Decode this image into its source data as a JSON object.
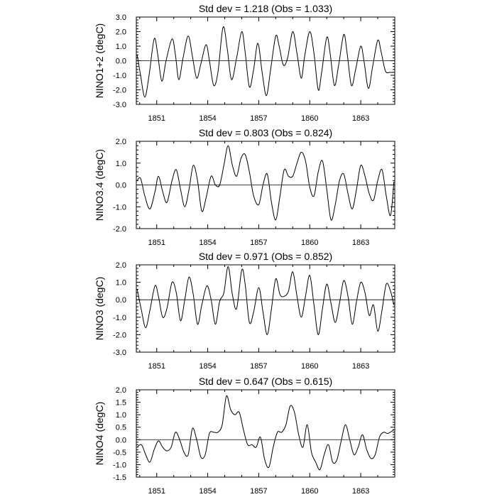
{
  "chart_data": [
    {
      "type": "line",
      "title": "Std dev = 1.218 (Obs = 1.033)",
      "ylabel": "NINO1+2 (degC)",
      "xlim": [
        1849.8,
        1865.0
      ],
      "ylim": [
        -3.0,
        3.0
      ],
      "x_ticks": [
        1851,
        1854,
        1857,
        1860,
        1863
      ],
      "y_ticks": [
        -3.0,
        -2.0,
        -1.0,
        0.0,
        1.0,
        2.0,
        3.0
      ],
      "y_tick_labels": [
        "-3.0",
        "-2.0",
        "-1.0",
        "0.0",
        "1.0",
        "2.0",
        "3.0"
      ],
      "x_tick_labels": [
        "1851",
        "1854",
        "1857",
        "1860",
        "1863"
      ],
      "series": [
        {
          "x": [
            1849.85,
            1850.05,
            1850.3,
            1850.55,
            1850.85,
            1851.05,
            1851.3,
            1851.55,
            1851.9,
            1852.1,
            1852.3,
            1852.55,
            1852.85,
            1853.1,
            1853.35,
            1853.6,
            1853.9,
            1854.1,
            1854.35,
            1854.6,
            1854.9,
            1855.15,
            1855.4,
            1855.7,
            1856.0,
            1856.2,
            1856.45,
            1856.7,
            1856.95,
            1857.2,
            1857.45,
            1857.7,
            1858.0,
            1858.2,
            1858.45,
            1858.7,
            1859.0,
            1859.25,
            1859.5,
            1859.7,
            1860.0,
            1860.25,
            1860.5,
            1860.7,
            1861.0,
            1861.2,
            1861.45,
            1861.7,
            1862.0,
            1862.2,
            1862.45,
            1862.7,
            1863.0,
            1863.2,
            1863.45,
            1863.7,
            1864.0,
            1864.2,
            1864.45,
            1864.7,
            1864.95
          ],
          "y": [
            0.4,
            -1.0,
            -2.5,
            -1.0,
            1.5,
            0.5,
            -1.4,
            0.0,
            1.5,
            0.4,
            -1.3,
            0.2,
            1.7,
            0.3,
            -1.2,
            -0.2,
            1.1,
            0.0,
            -1.7,
            -0.8,
            2.3,
            0.8,
            -1.3,
            0.2,
            2.0,
            0.6,
            -1.8,
            -0.6,
            1.2,
            -0.8,
            -2.4,
            -0.6,
            1.7,
            1.0,
            -0.3,
            0.2,
            2.0,
            0.5,
            -1.2,
            0.3,
            2.0,
            0.5,
            -2.0,
            -0.8,
            1.6,
            0.5,
            -1.7,
            -0.3,
            1.8,
            0.5,
            -1.7,
            -0.6,
            1.0,
            -0.1,
            -1.9,
            -0.4,
            1.4,
            0.6,
            -0.7,
            -0.8,
            -0.8
          ]
        }
      ]
    },
    {
      "type": "line",
      "title": "Std dev = 0.803 (Obs = 0.824)",
      "ylabel": "NINO3.4 (degC)",
      "xlim": [
        1849.8,
        1865.0
      ],
      "ylim": [
        -2.0,
        2.0
      ],
      "x_ticks": [
        1851,
        1854,
        1857,
        1860,
        1863
      ],
      "y_ticks": [
        -2.0,
        -1.0,
        0.0,
        1.0,
        2.0
      ],
      "y_tick_labels": [
        "-2.0",
        "-1.0",
        "0.0",
        "1.0",
        "2.0"
      ],
      "x_tick_labels": [
        "1851",
        "1854",
        "1857",
        "1860",
        "1863"
      ],
      "series": [
        {
          "x": [
            1849.85,
            1850.05,
            1850.3,
            1850.6,
            1850.9,
            1851.1,
            1851.35,
            1851.6,
            1851.9,
            1852.15,
            1852.4,
            1852.65,
            1852.9,
            1853.15,
            1853.4,
            1853.65,
            1853.9,
            1854.2,
            1854.45,
            1854.7,
            1854.95,
            1855.2,
            1855.45,
            1855.7,
            1855.95,
            1856.2,
            1856.45,
            1856.7,
            1857.0,
            1857.25,
            1857.5,
            1857.75,
            1858.0,
            1858.25,
            1858.5,
            1858.75,
            1859.0,
            1859.25,
            1859.5,
            1859.75,
            1860.0,
            1860.25,
            1860.5,
            1860.75,
            1861.0,
            1861.25,
            1861.5,
            1861.75,
            1862.0,
            1862.25,
            1862.5,
            1862.75,
            1863.0,
            1863.25,
            1863.5,
            1863.75,
            1864.0,
            1864.25,
            1864.5,
            1864.75,
            1864.95
          ],
          "y": [
            0.2,
            0.3,
            -0.5,
            -1.1,
            -0.3,
            0.4,
            -0.3,
            -0.8,
            0.2,
            0.7,
            -0.2,
            -1.0,
            -0.2,
            0.9,
            0.2,
            -1.2,
            -0.6,
            0.4,
            0.0,
            0.0,
            0.9,
            1.8,
            0.9,
            0.4,
            1.2,
            1.4,
            0.6,
            -0.5,
            -0.9,
            0.0,
            0.5,
            -0.8,
            -1.6,
            -0.5,
            0.7,
            0.4,
            0.4,
            1.0,
            1.5,
            1.1,
            -0.1,
            -0.5,
            0.6,
            1.1,
            -0.2,
            -1.6,
            -0.9,
            0.2,
            0.5,
            -0.4,
            -1.1,
            -0.2,
            0.9,
            0.4,
            -0.4,
            -0.7,
            0.2,
            0.7,
            -0.5,
            -1.4,
            0.15
          ]
        }
      ]
    },
    {
      "type": "line",
      "title": "Std dev = 0.971 (Obs = 0.852)",
      "ylabel": "NINO3 (degC)",
      "xlim": [
        1849.8,
        1865.0
      ],
      "ylim": [
        -3.0,
        2.0
      ],
      "x_ticks": [
        1851,
        1854,
        1857,
        1860,
        1863
      ],
      "y_ticks": [
        -3.0,
        -2.0,
        -1.0,
        0.0,
        1.0,
        2.0
      ],
      "y_tick_labels": [
        "-3.0",
        "-2.0",
        "-1.0",
        "0.0",
        "1.0",
        "2.0"
      ],
      "x_tick_labels": [
        "1851",
        "1854",
        "1857",
        "1860",
        "1863"
      ],
      "series": [
        {
          "x": [
            1849.85,
            1850.1,
            1850.35,
            1850.6,
            1850.9,
            1851.1,
            1851.35,
            1851.6,
            1851.9,
            1852.15,
            1852.4,
            1852.65,
            1852.9,
            1853.15,
            1853.4,
            1853.65,
            1853.95,
            1854.2,
            1854.45,
            1854.7,
            1854.95,
            1855.2,
            1855.45,
            1855.7,
            1856.0,
            1856.2,
            1856.45,
            1856.7,
            1857.0,
            1857.25,
            1857.5,
            1857.75,
            1858.0,
            1858.25,
            1858.5,
            1858.75,
            1859.0,
            1859.25,
            1859.5,
            1859.75,
            1860.0,
            1860.25,
            1860.5,
            1860.75,
            1861.0,
            1861.25,
            1861.5,
            1861.75,
            1862.0,
            1862.25,
            1862.5,
            1862.75,
            1863.0,
            1863.25,
            1863.5,
            1863.75,
            1864.0,
            1864.25,
            1864.5,
            1864.75,
            1864.95
          ],
          "y": [
            0.6,
            -0.6,
            -1.6,
            -0.6,
            0.8,
            0.2,
            -1.0,
            -0.5,
            1.0,
            0.4,
            -1.2,
            0.0,
            1.3,
            0.3,
            -1.4,
            -0.3,
            0.8,
            0.0,
            -1.4,
            -0.1,
            0.4,
            1.9,
            0.3,
            -0.5,
            1.7,
            0.9,
            -1.3,
            -0.7,
            0.7,
            -0.7,
            -2.0,
            -0.5,
            1.2,
            0.3,
            0.2,
            0.5,
            1.6,
            0.2,
            -1.0,
            0.2,
            1.4,
            -0.3,
            -2.0,
            -0.5,
            0.9,
            -0.2,
            -1.3,
            -0.2,
            1.1,
            0.2,
            -1.4,
            -0.1,
            1.0,
            0.4,
            -0.9,
            -0.3,
            -1.8,
            -0.6,
            0.9,
            0.5,
            -0.3
          ]
        }
      ]
    },
    {
      "type": "line",
      "title": "Std dev = 0.647 (Obs = 0.615)",
      "ylabel": "NINO4 (degC)",
      "xlim": [
        1849.8,
        1865.0
      ],
      "ylim": [
        -1.5,
        2.0
      ],
      "x_ticks": [
        1851,
        1854,
        1857,
        1860,
        1863
      ],
      "y_ticks": [
        -1.5,
        -1.0,
        -0.5,
        0.0,
        0.5,
        1.0,
        1.5,
        2.0
      ],
      "y_tick_labels": [
        "-1.5",
        "-1.0",
        "-0.5",
        "0.0",
        "0.5",
        "1.0",
        "1.5",
        "2.0"
      ],
      "x_tick_labels": [
        "1851",
        "1854",
        "1857",
        "1860",
        "1863"
      ],
      "series": [
        {
          "x": [
            1849.85,
            1850.1,
            1850.35,
            1850.6,
            1850.85,
            1851.1,
            1851.35,
            1851.6,
            1851.85,
            1852.1,
            1852.35,
            1852.6,
            1852.85,
            1853.1,
            1853.35,
            1853.6,
            1853.85,
            1854.1,
            1854.35,
            1854.6,
            1854.85,
            1855.1,
            1855.35,
            1855.6,
            1855.85,
            1856.1,
            1856.35,
            1856.6,
            1856.85,
            1857.1,
            1857.35,
            1857.6,
            1857.85,
            1858.1,
            1858.35,
            1858.6,
            1858.85,
            1859.1,
            1859.35,
            1859.6,
            1859.85,
            1860.1,
            1860.35,
            1860.6,
            1860.85,
            1861.1,
            1861.35,
            1861.6,
            1861.85,
            1862.1,
            1862.35,
            1862.6,
            1862.85,
            1863.1,
            1863.35,
            1863.6,
            1863.85,
            1864.1,
            1864.35,
            1864.6,
            1864.95
          ],
          "y": [
            -0.3,
            -0.2,
            -0.6,
            -0.9,
            -0.4,
            -0.05,
            -0.3,
            -0.45,
            -0.3,
            0.3,
            0.0,
            -0.5,
            -0.6,
            0.45,
            0.0,
            -0.7,
            -0.6,
            0.25,
            0.3,
            0.3,
            0.6,
            1.75,
            1.2,
            1.0,
            1.1,
            0.4,
            -0.2,
            -0.2,
            -0.3,
            0.1,
            -0.8,
            -1.1,
            -0.3,
            0.3,
            0.3,
            0.6,
            1.35,
            1.1,
            0.2,
            -0.3,
            0.6,
            -0.5,
            -0.9,
            -1.2,
            -0.6,
            -0.2,
            -0.9,
            -0.8,
            -0.05,
            0.6,
            0.0,
            -0.6,
            -0.3,
            0.2,
            -0.4,
            -0.75,
            -0.6,
            0.1,
            0.3,
            0.25,
            0.4
          ]
        }
      ]
    }
  ]
}
